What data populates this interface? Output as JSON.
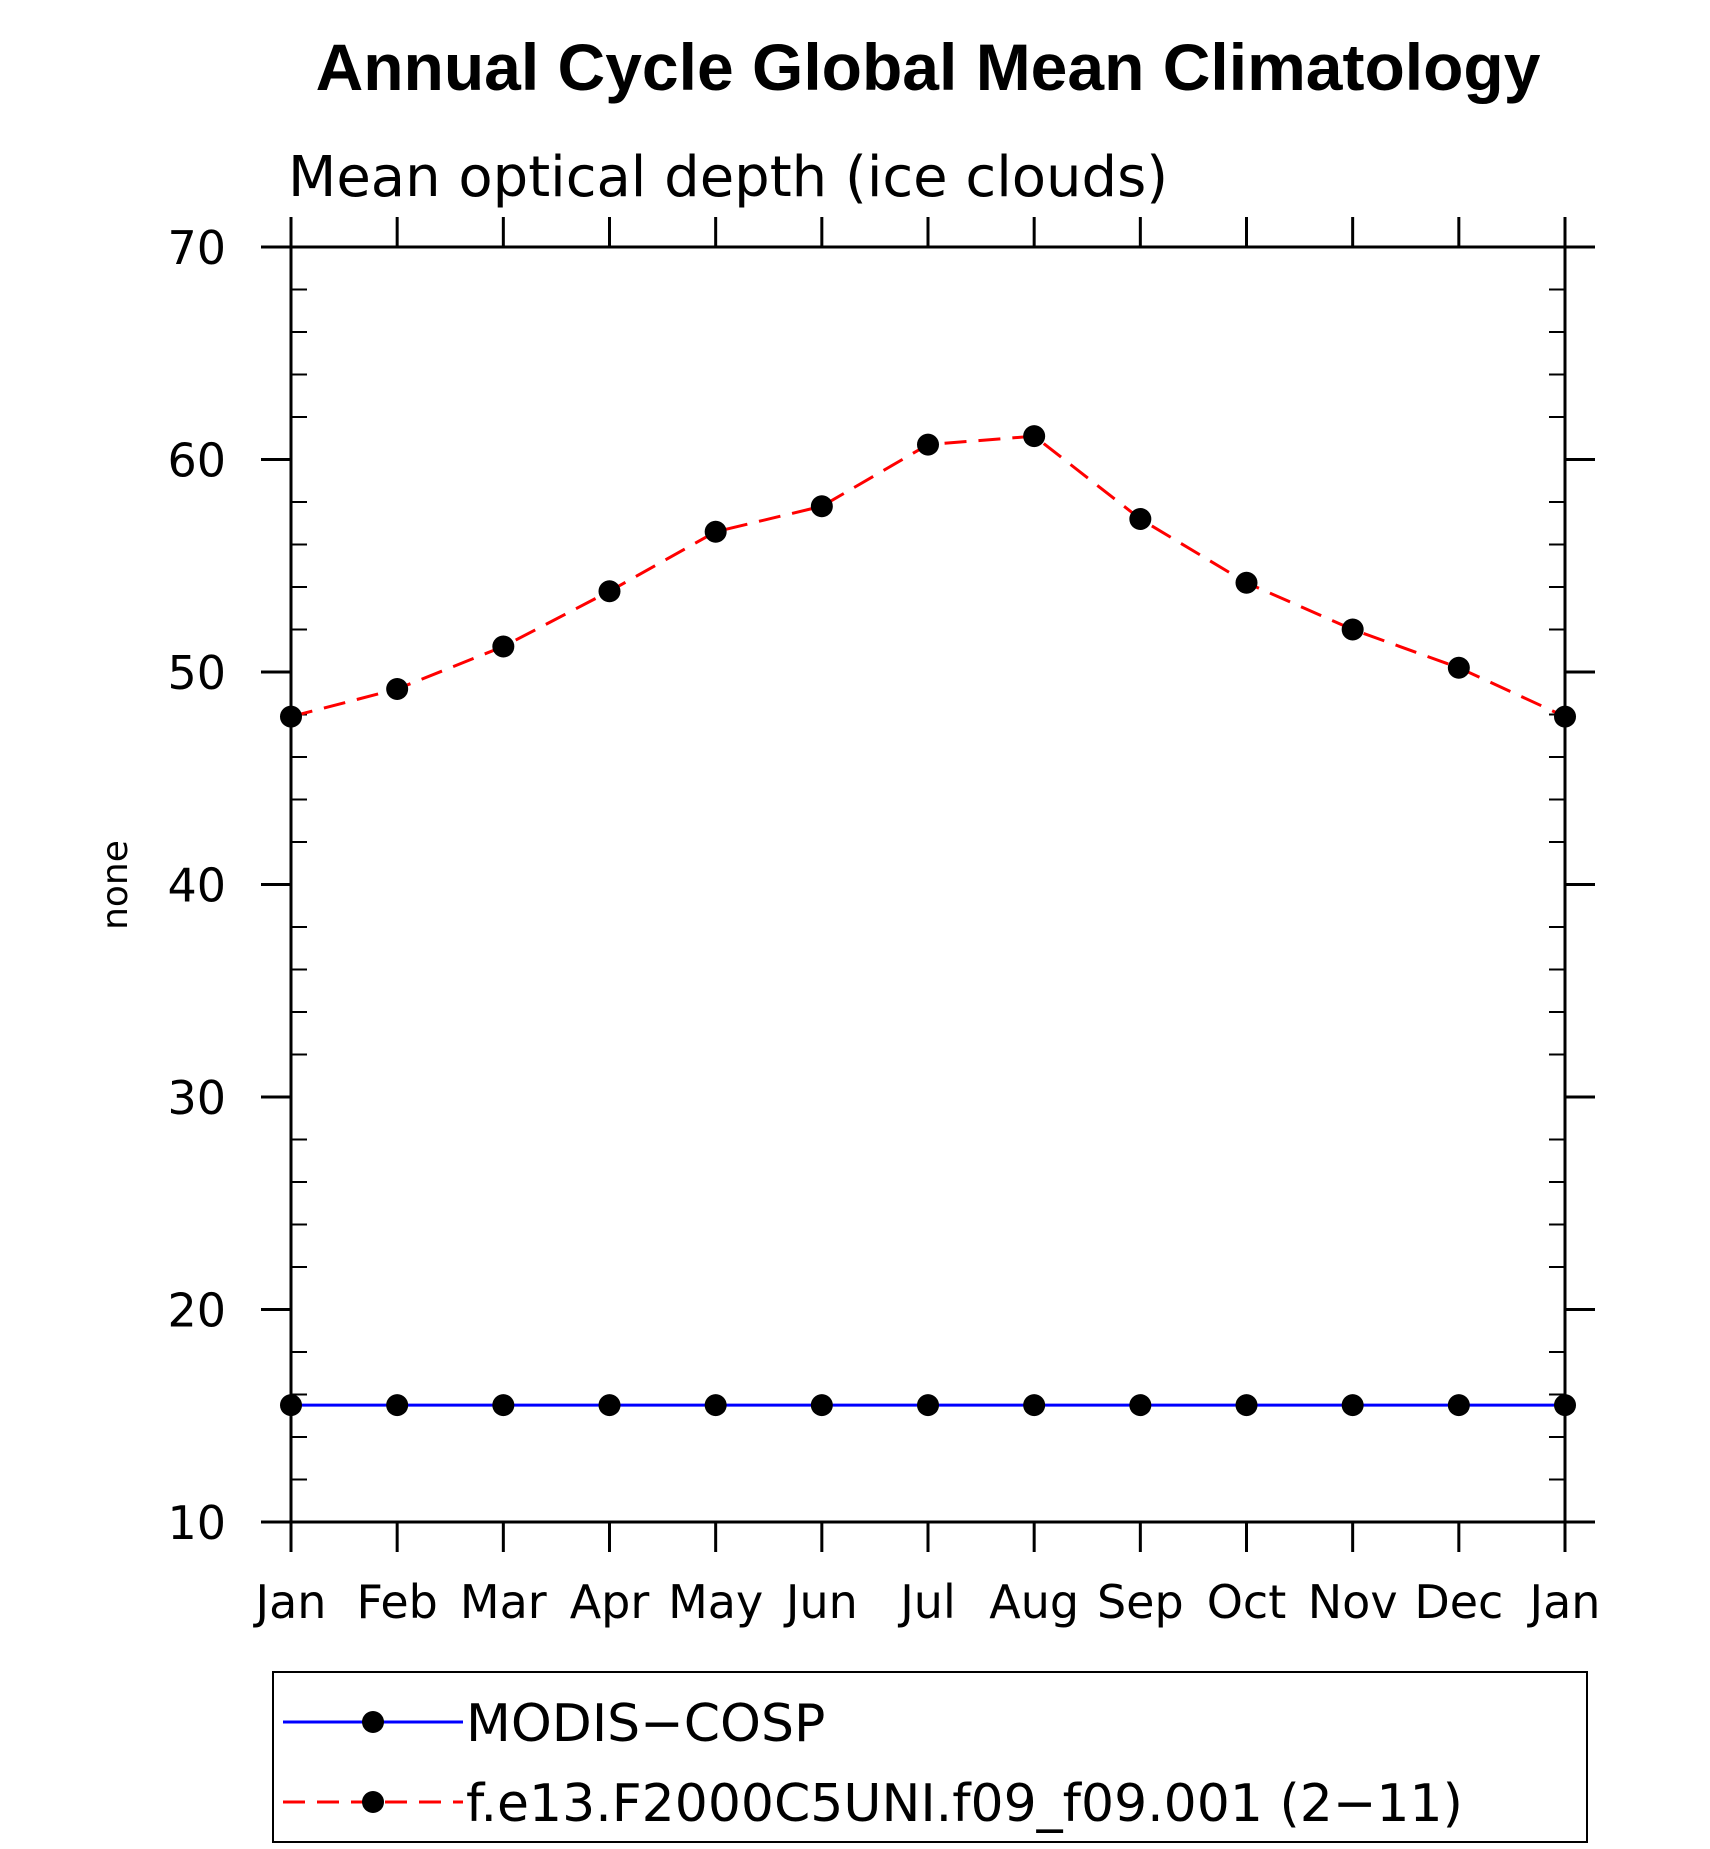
{
  "chart_data": {
    "type": "line",
    "title": "Annual Cycle Global Mean Climatology",
    "subtitle": "Mean optical depth (ice clouds)",
    "xlabel": "",
    "ylabel": "none",
    "categories": [
      "Jan",
      "Feb",
      "Mar",
      "Apr",
      "May",
      "Jun",
      "Jul",
      "Aug",
      "Sep",
      "Oct",
      "Nov",
      "Dec",
      "Jan"
    ],
    "ylim": [
      10,
      70
    ],
    "yticks": [
      10,
      20,
      30,
      40,
      50,
      60,
      70
    ],
    "yminor_step": 2,
    "grid": false,
    "legend_position": "bottom",
    "series": [
      {
        "name": "MODIS−COSP",
        "color": "#0000ff",
        "dash": "solid",
        "marker": "filled-circle",
        "values": [
          15.5,
          15.5,
          15.5,
          15.5,
          15.5,
          15.5,
          15.5,
          15.5,
          15.5,
          15.5,
          15.5,
          15.5,
          15.5
        ]
      },
      {
        "name": "f.e13.F2000C5UNI.f09_f09.001 (2−11)",
        "color": "#ff0000",
        "dash": "dashed",
        "marker": "filled-circle",
        "values": [
          47.9,
          49.2,
          51.2,
          53.8,
          56.6,
          57.8,
          60.7,
          61.1,
          57.2,
          54.2,
          52.0,
          50.2,
          47.9
        ]
      }
    ]
  }
}
